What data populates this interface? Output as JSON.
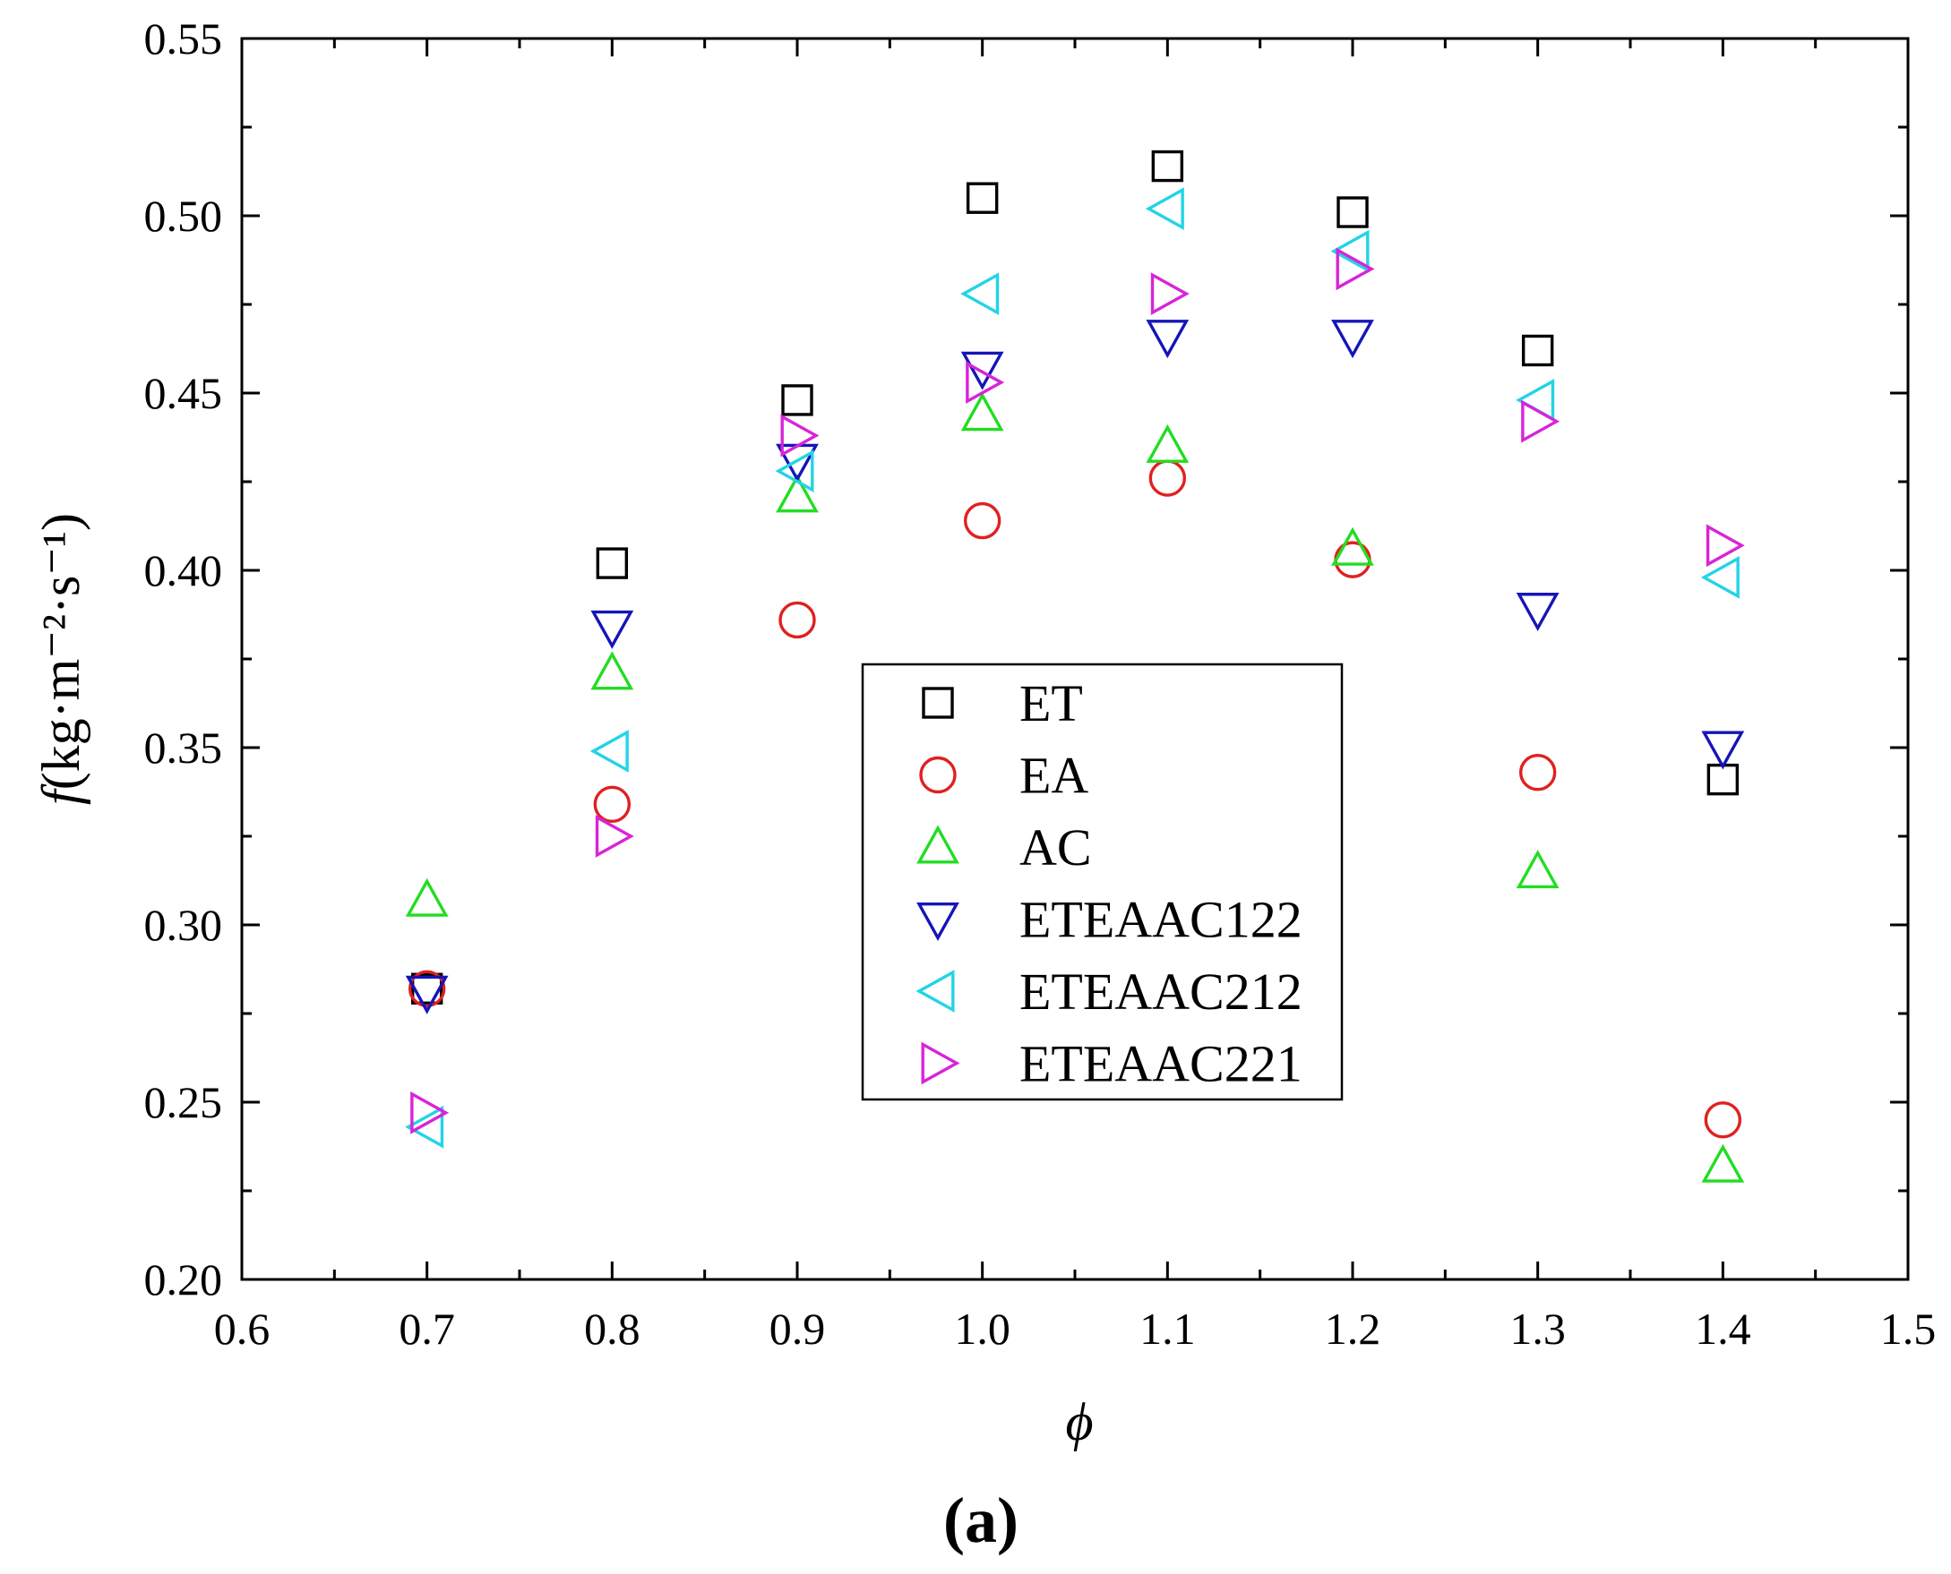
{
  "chart_data": {
    "type": "scatter",
    "xlabel": "ϕ",
    "ylabel_main": "f",
    "ylabel_units": "(kg·m⁻²·s⁻¹)",
    "xlim": [
      0.6,
      1.5
    ],
    "ylim": [
      0.2,
      0.55
    ],
    "x_ticks": [
      "0.6",
      "0.7",
      "0.8",
      "0.9",
      "1.0",
      "1.1",
      "1.2",
      "1.3",
      "1.4",
      "1.5"
    ],
    "y_ticks": [
      "0.20",
      "0.25",
      "0.30",
      "0.35",
      "0.40",
      "0.45",
      "0.50",
      "0.55"
    ],
    "grid": false,
    "legend_position": "center",
    "panel_label": "(a)",
    "x": [
      0.7,
      0.8,
      0.9,
      1.0,
      1.1,
      1.2,
      1.3,
      1.4
    ],
    "series": [
      {
        "name": "ET",
        "marker": "square",
        "color": "#000000",
        "values": [
          0.282,
          0.402,
          0.448,
          0.505,
          0.514,
          0.501,
          0.462,
          0.341
        ]
      },
      {
        "name": "EA",
        "marker": "circle",
        "color": "#e02020",
        "values": [
          0.282,
          0.334,
          0.386,
          0.414,
          0.426,
          0.403,
          0.343,
          0.245
        ]
      },
      {
        "name": "AC",
        "marker": "triangle-up",
        "color": "#22dd22",
        "values": [
          0.307,
          0.371,
          0.421,
          0.444,
          0.435,
          0.406,
          0.315,
          0.232
        ]
      },
      {
        "name": "ETEAAC122",
        "marker": "triangle-down",
        "color": "#1515b8",
        "values": [
          0.281,
          0.384,
          0.431,
          0.457,
          0.466,
          0.466,
          0.389,
          0.35
        ]
      },
      {
        "name": "ETEAAC212",
        "marker": "triangle-left",
        "color": "#22d4e6",
        "values": [
          0.243,
          0.349,
          0.428,
          0.478,
          0.502,
          0.49,
          0.448,
          0.398
        ]
      },
      {
        "name": "ETEAAC221",
        "marker": "triangle-right",
        "color": "#d824d8",
        "values": [
          0.247,
          0.325,
          0.438,
          0.453,
          0.478,
          0.485,
          0.442,
          0.407
        ]
      }
    ]
  }
}
